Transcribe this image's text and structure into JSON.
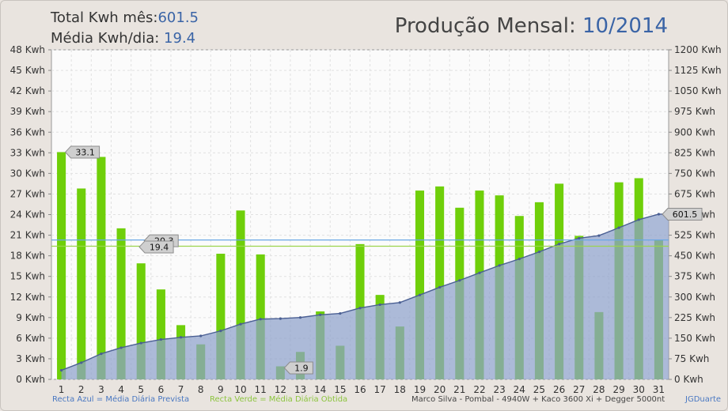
{
  "header": {
    "total_label": "Total Kwh mês:",
    "total_value": "601.5",
    "avg_label": "Média Kwh/dia:",
    "avg_value": "19.4",
    "title_label": "Produção Mensal:",
    "title_value": "10/2014"
  },
  "footer": {
    "blue_line": "Recta Azul = Média Diária Prevista",
    "green_line": "Recta Verde = Média Diária Obtida",
    "credit": "Marco Silva - Pombal - 4940W + Kaco 3600 Xi + Degger 5000nt",
    "author": "JGDuarte"
  },
  "colors": {
    "bar": "#6fcf0a",
    "area": "#8ea1cb",
    "area_line": "#4a5f93",
    "blue_line": "#6aa7e6",
    "green_line": "#9bd44e",
    "text_blue": "#3a64a6"
  },
  "chart_data": {
    "type": "bar",
    "categories": [
      "1",
      "2",
      "3",
      "4",
      "5",
      "6",
      "7",
      "8",
      "9",
      "10",
      "11",
      "12",
      "13",
      "14",
      "15",
      "16",
      "17",
      "18",
      "19",
      "20",
      "21",
      "22",
      "23",
      "24",
      "25",
      "26",
      "27",
      "28",
      "29",
      "30",
      "31"
    ],
    "series": [
      {
        "axis": "left",
        "type": "bar",
        "values": [
          33.1,
          27.8,
          32.4,
          22.0,
          16.9,
          13.1,
          7.9,
          5.1,
          18.3,
          24.6,
          18.2,
          1.9,
          4.0,
          9.9,
          4.9,
          19.7,
          12.3,
          7.7,
          27.5,
          28.1,
          25.0,
          27.5,
          26.8,
          23.8,
          25.8,
          28.5,
          20.9,
          9.8,
          28.7,
          29.3,
          20.3
        ]
      },
      {
        "axis": "right",
        "type": "area",
        "values": [
          33.1,
          60.9,
          93.3,
          115.3,
          132.2,
          145.3,
          153.2,
          158.3,
          176.6,
          201.2,
          219.4,
          221.3,
          225.3,
          235.2,
          240.1,
          259.8,
          272.1,
          279.8,
          307.3,
          335.4,
          360.4,
          387.9,
          414.7,
          438.5,
          464.3,
          492.8,
          513.7,
          523.5,
          552.2,
          581.5,
          601.5
        ]
      }
    ],
    "reference_lines": [
      {
        "name": "Recta Azul = Média Diária Prevista",
        "value": 20.3,
        "label": "20.3"
      },
      {
        "name": "Recta Verde = Média Diária Obtida",
        "value": 19.4,
        "label": "19.4"
      }
    ],
    "callouts": [
      {
        "day": "1",
        "label": "33.1"
      },
      {
        "day": "12",
        "label": "1.9"
      },
      {
        "day": "31",
        "label": "601.5"
      }
    ],
    "y_left": {
      "ticks": [
        "0 Kwh",
        "3 Kwh",
        "6 Kwh",
        "9 Kwh",
        "12 Kwh",
        "15 Kwh",
        "18 Kwh",
        "21 Kwh",
        "24 Kwh",
        "27 Kwh",
        "30 Kwh",
        "33 Kwh",
        "36 Kwh",
        "39 Kwh",
        "42 Kwh",
        "45 Kwh",
        "48 Kwh"
      ],
      "lim": [
        0,
        48
      ]
    },
    "y_right": {
      "ticks": [
        "0 Kwh",
        "75 Kwh",
        "150 Kwh",
        "225 Kwh",
        "300 Kwh",
        "375 Kwh",
        "450 Kwh",
        "525 Kwh",
        "600 Kwh",
        "675 Kwh",
        "750 Kwh",
        "825 Kwh",
        "900 Kwh",
        "975 Kwh",
        "1050 Kwh",
        "1125 Kwh",
        "1200 Kwh"
      ],
      "lim": [
        0,
        1200
      ]
    },
    "grid": true
  }
}
